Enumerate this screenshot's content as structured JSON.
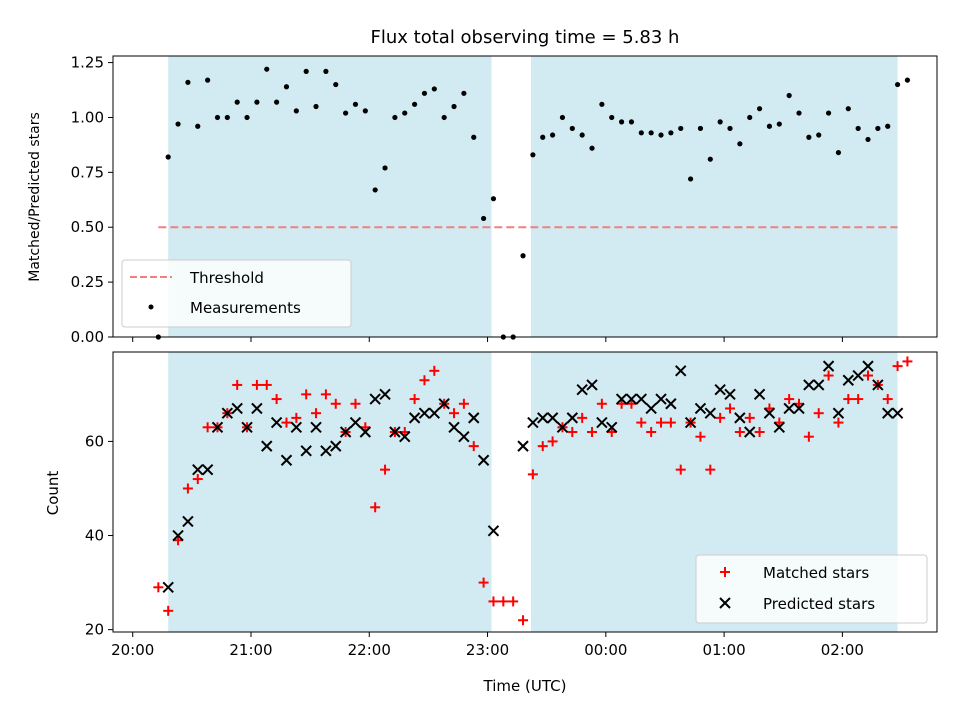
{
  "chart_data": [
    {
      "type": "scatter",
      "title": "Flux total observing time = 5.83 h",
      "xlabel": "",
      "ylabel": "Matched/Predicted stars",
      "ylim": [
        0,
        1.28
      ],
      "yticks": [
        "0.00",
        "0.25",
        "0.50",
        "0.75",
        "1.00",
        "1.25"
      ],
      "ytick_values": [
        0,
        0.25,
        0.5,
        0.75,
        1.0,
        1.25
      ],
      "threshold": {
        "value": 0.5,
        "x_range": [
          "20:13",
          "02:28"
        ],
        "color": "#f08080",
        "style": "dashed"
      },
      "shaded_intervals": [
        [
          "20:18",
          "23:02"
        ],
        [
          "23:22",
          "02:28"
        ]
      ],
      "shade_color": "#add8e6",
      "legend": {
        "placement": "lower-left",
        "entries": [
          "Threshold",
          "Measurements"
        ]
      },
      "series": [
        {
          "name": "Measurements",
          "color": "#000000",
          "marker": "dot",
          "points": [
            [
              "20:13",
              0.0
            ],
            [
              "20:18",
              0.82
            ],
            [
              "20:23",
              0.97
            ],
            [
              "20:28",
              1.16
            ],
            [
              "20:33",
              0.96
            ],
            [
              "20:38",
              1.17
            ],
            [
              "20:43",
              1.0
            ],
            [
              "20:48",
              1.0
            ],
            [
              "20:53",
              1.07
            ],
            [
              "20:58",
              1.0
            ],
            [
              "21:03",
              1.07
            ],
            [
              "21:08",
              1.22
            ],
            [
              "21:13",
              1.07
            ],
            [
              "21:18",
              1.14
            ],
            [
              "21:23",
              1.03
            ],
            [
              "21:28",
              1.21
            ],
            [
              "21:33",
              1.05
            ],
            [
              "21:38",
              1.21
            ],
            [
              "21:43",
              1.15
            ],
            [
              "21:48",
              1.02
            ],
            [
              "21:53",
              1.06
            ],
            [
              "21:58",
              1.03
            ],
            [
              "22:03",
              0.67
            ],
            [
              "22:08",
              0.77
            ],
            [
              "22:13",
              1.0
            ],
            [
              "22:18",
              1.02
            ],
            [
              "22:23",
              1.06
            ],
            [
              "22:28",
              1.11
            ],
            [
              "22:33",
              1.13
            ],
            [
              "22:38",
              1.0
            ],
            [
              "22:43",
              1.05
            ],
            [
              "22:48",
              1.11
            ],
            [
              "22:53",
              0.91
            ],
            [
              "22:58",
              0.54
            ],
            [
              "23:03",
              0.63
            ],
            [
              "23:08",
              0.0
            ],
            [
              "23:13",
              0.0
            ],
            [
              "23:18",
              0.37
            ],
            [
              "23:23",
              0.83
            ],
            [
              "23:28",
              0.91
            ],
            [
              "23:33",
              0.92
            ],
            [
              "23:38",
              1.0
            ],
            [
              "23:43",
              0.95
            ],
            [
              "23:48",
              0.92
            ],
            [
              "23:53",
              0.86
            ],
            [
              "23:58",
              1.06
            ],
            [
              "00:03",
              1.0
            ],
            [
              "00:08",
              0.98
            ],
            [
              "00:13",
              0.98
            ],
            [
              "00:18",
              0.93
            ],
            [
              "00:23",
              0.93
            ],
            [
              "00:28",
              0.92
            ],
            [
              "00:33",
              0.93
            ],
            [
              "00:38",
              0.95
            ],
            [
              "00:43",
              0.72
            ],
            [
              "00:48",
              0.95
            ],
            [
              "00:53",
              0.81
            ],
            [
              "00:58",
              0.98
            ],
            [
              "01:03",
              0.95
            ],
            [
              "01:08",
              0.88
            ],
            [
              "01:13",
              1.0
            ],
            [
              "01:18",
              1.04
            ],
            [
              "01:23",
              0.96
            ],
            [
              "01:28",
              0.97
            ],
            [
              "01:33",
              1.1
            ],
            [
              "01:38",
              1.02
            ],
            [
              "01:43",
              0.91
            ],
            [
              "01:48",
              0.92
            ],
            [
              "01:53",
              1.02
            ],
            [
              "01:58",
              0.84
            ],
            [
              "02:03",
              1.04
            ],
            [
              "02:08",
              0.95
            ],
            [
              "02:13",
              0.9
            ],
            [
              "02:18",
              0.95
            ],
            [
              "02:23",
              0.96
            ],
            [
              "02:28",
              1.15
            ],
            [
              "02:33",
              1.17
            ]
          ]
        }
      ]
    },
    {
      "type": "scatter",
      "title": "",
      "xlabel": "Time (UTC)",
      "ylabel": "Count",
      "ylim": [
        19.5,
        79
      ],
      "yticks": [
        "20",
        "40",
        "60"
      ],
      "ytick_values": [
        20,
        40,
        60
      ],
      "xticks": [
        "20:00",
        "21:00",
        "22:00",
        "23:00",
        "00:00",
        "01:00",
        "02:00"
      ],
      "xtick_values": [
        "20:00",
        "21:00",
        "22:00",
        "23:00",
        "00:00",
        "01:00",
        "02:00"
      ],
      "shaded_intervals": [
        [
          "20:18",
          "23:02"
        ],
        [
          "23:22",
          "02:28"
        ]
      ],
      "shade_color": "#add8e6",
      "legend": {
        "placement": "lower-right",
        "entries": [
          "Matched stars",
          "Predicted stars"
        ]
      },
      "series": [
        {
          "name": "Matched stars",
          "color": "#ff0000",
          "marker": "plus",
          "points": [
            [
              "20:13",
              29
            ],
            [
              "20:18",
              24
            ],
            [
              "20:23",
              39
            ],
            [
              "20:28",
              50
            ],
            [
              "20:33",
              52
            ],
            [
              "20:38",
              63
            ],
            [
              "20:43",
              63
            ],
            [
              "20:48",
              66
            ],
            [
              "20:53",
              72
            ],
            [
              "20:58",
              63
            ],
            [
              "21:03",
              72
            ],
            [
              "21:08",
              72
            ],
            [
              "21:13",
              69
            ],
            [
              "21:18",
              64
            ],
            [
              "21:23",
              65
            ],
            [
              "21:28",
              70
            ],
            [
              "21:33",
              66
            ],
            [
              "21:38",
              70
            ],
            [
              "21:43",
              68
            ],
            [
              "21:48",
              62
            ],
            [
              "21:53",
              68
            ],
            [
              "21:58",
              63
            ],
            [
              "22:03",
              46
            ],
            [
              "22:08",
              54
            ],
            [
              "22:13",
              62
            ],
            [
              "22:18",
              62
            ],
            [
              "22:23",
              69
            ],
            [
              "22:28",
              73
            ],
            [
              "22:33",
              75
            ],
            [
              "22:38",
              68
            ],
            [
              "22:43",
              66
            ],
            [
              "22:48",
              68
            ],
            [
              "22:53",
              59
            ],
            [
              "22:58",
              30
            ],
            [
              "23:03",
              26
            ],
            [
              "23:08",
              26
            ],
            [
              "23:13",
              26
            ],
            [
              "23:18",
              22
            ],
            [
              "23:23",
              53
            ],
            [
              "23:28",
              59
            ],
            [
              "23:33",
              60
            ],
            [
              "23:38",
              63
            ],
            [
              "23:43",
              62
            ],
            [
              "23:48",
              65
            ],
            [
              "23:53",
              62
            ],
            [
              "23:58",
              68
            ],
            [
              "00:03",
              62
            ],
            [
              "00:08",
              68
            ],
            [
              "00:13",
              68
            ],
            [
              "00:18",
              64
            ],
            [
              "00:23",
              62
            ],
            [
              "00:28",
              64
            ],
            [
              "00:33",
              64
            ],
            [
              "00:38",
              54
            ],
            [
              "00:43",
              64
            ],
            [
              "00:48",
              61
            ],
            [
              "00:53",
              54
            ],
            [
              "00:58",
              65
            ],
            [
              "01:03",
              67
            ],
            [
              "01:08",
              62
            ],
            [
              "01:13",
              65
            ],
            [
              "01:18",
              62
            ],
            [
              "01:23",
              67
            ],
            [
              "01:28",
              64
            ],
            [
              "01:33",
              69
            ],
            [
              "01:38",
              68
            ],
            [
              "01:43",
              61
            ],
            [
              "01:48",
              66
            ],
            [
              "01:53",
              74
            ],
            [
              "01:58",
              64
            ],
            [
              "02:03",
              69
            ],
            [
              "02:08",
              69
            ],
            [
              "02:13",
              74
            ],
            [
              "02:18",
              72
            ],
            [
              "02:23",
              69
            ],
            [
              "02:28",
              76
            ],
            [
              "02:33",
              77
            ]
          ]
        },
        {
          "name": "Predicted stars",
          "color": "#000000",
          "marker": "x",
          "points": [
            [
              "20:18",
              29
            ],
            [
              "20:23",
              40
            ],
            [
              "20:28",
              43
            ],
            [
              "20:33",
              54
            ],
            [
              "20:38",
              54
            ],
            [
              "20:43",
              63
            ],
            [
              "20:48",
              66
            ],
            [
              "20:53",
              67
            ],
            [
              "20:58",
              63
            ],
            [
              "21:03",
              67
            ],
            [
              "21:08",
              59
            ],
            [
              "21:13",
              64
            ],
            [
              "21:18",
              56
            ],
            [
              "21:23",
              63
            ],
            [
              "21:28",
              58
            ],
            [
              "21:33",
              63
            ],
            [
              "21:38",
              58
            ],
            [
              "21:43",
              59
            ],
            [
              "21:48",
              62
            ],
            [
              "21:53",
              64
            ],
            [
              "21:58",
              62
            ],
            [
              "22:03",
              69
            ],
            [
              "22:08",
              70
            ],
            [
              "22:13",
              62
            ],
            [
              "22:18",
              61
            ],
            [
              "22:23",
              65
            ],
            [
              "22:28",
              66
            ],
            [
              "22:33",
              66
            ],
            [
              "22:38",
              68
            ],
            [
              "22:43",
              63
            ],
            [
              "22:48",
              61
            ],
            [
              "22:53",
              65
            ],
            [
              "22:58",
              56
            ],
            [
              "23:03",
              41
            ],
            [
              "23:18",
              59
            ],
            [
              "23:23",
              64
            ],
            [
              "23:28",
              65
            ],
            [
              "23:33",
              65
            ],
            [
              "23:38",
              63
            ],
            [
              "23:43",
              65
            ],
            [
              "23:48",
              71
            ],
            [
              "23:53",
              72
            ],
            [
              "23:58",
              64
            ],
            [
              "00:03",
              63
            ],
            [
              "00:08",
              69
            ],
            [
              "00:13",
              69
            ],
            [
              "00:18",
              69
            ],
            [
              "00:23",
              67
            ],
            [
              "00:28",
              69
            ],
            [
              "00:33",
              68
            ],
            [
              "00:38",
              75
            ],
            [
              "00:43",
              64
            ],
            [
              "00:48",
              67
            ],
            [
              "00:53",
              66
            ],
            [
              "00:58",
              71
            ],
            [
              "01:03",
              70
            ],
            [
              "01:08",
              65
            ],
            [
              "01:13",
              62
            ],
            [
              "01:18",
              70
            ],
            [
              "01:23",
              66
            ],
            [
              "01:28",
              63
            ],
            [
              "01:33",
              67
            ],
            [
              "01:38",
              67
            ],
            [
              "01:43",
              72
            ],
            [
              "01:48",
              72
            ],
            [
              "01:53",
              76
            ],
            [
              "01:58",
              66
            ],
            [
              "02:03",
              73
            ],
            [
              "02:08",
              74
            ],
            [
              "02:13",
              76
            ],
            [
              "02:18",
              72
            ],
            [
              "02:23",
              66
            ],
            [
              "02:28",
              66
            ]
          ]
        }
      ]
    }
  ]
}
